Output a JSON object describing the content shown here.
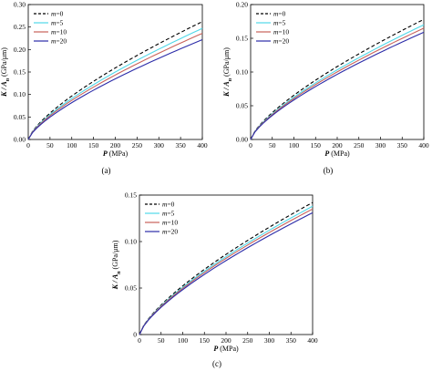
{
  "chart_data": [
    {
      "type": "line",
      "caption": "(a)",
      "xlabel_italic": "P",
      "xlabel_rest": " (MPa)",
      "ylabel_italic": "K / A",
      "ylabel_sub": "n",
      "ylabel_rest": " (GPa/μm)",
      "xlim": [
        0,
        400
      ],
      "ylim": [
        0,
        0.3
      ],
      "xticks": [
        "0",
        "50",
        "100",
        "150",
        "200",
        "250",
        "300",
        "350",
        "400"
      ],
      "yticks": [
        "0.00",
        "0.05",
        "0.10",
        "0.15",
        "0.20",
        "0.25",
        "0.30"
      ],
      "legend_position": "top-left",
      "grid": false,
      "x": [
        0,
        400
      ],
      "series": [
        {
          "prefix": "m",
          "suffix": "=0",
          "color": "#000000",
          "dash": true,
          "end_value": 0.262
        },
        {
          "prefix": "m",
          "suffix": "=5",
          "color": "#4fd8e8",
          "dash": false,
          "end_value": 0.247
        },
        {
          "prefix": "m",
          "suffix": "=10",
          "color": "#c8625a",
          "dash": false,
          "end_value": 0.236
        },
        {
          "prefix": "m",
          "suffix": "=20",
          "color": "#2b2ba8",
          "dash": false,
          "end_value": 0.222
        }
      ]
    },
    {
      "type": "line",
      "caption": "(b)",
      "xlabel_italic": "P",
      "xlabel_rest": " (MPa)",
      "ylabel_italic": "K / A",
      "ylabel_sub": "n",
      "ylabel_rest": " (GPa/μm)",
      "xlim": [
        0,
        400
      ],
      "ylim": [
        0,
        0.2
      ],
      "xticks": [
        "0",
        "50",
        "100",
        "150",
        "200",
        "250",
        "300",
        "350",
        "400"
      ],
      "yticks": [
        "0.00",
        "0.05",
        "0.10",
        "0.15",
        "0.20"
      ],
      "legend_position": "top-left",
      "grid": false,
      "x": [
        0,
        400
      ],
      "series": [
        {
          "prefix": "m",
          "suffix": "=0",
          "color": "#000000",
          "dash": true,
          "end_value": 0.178
        },
        {
          "prefix": "m",
          "suffix": "=5",
          "color": "#4fd8e8",
          "dash": false,
          "end_value": 0.17
        },
        {
          "prefix": "m",
          "suffix": "=10",
          "color": "#c8625a",
          "dash": false,
          "end_value": 0.165
        },
        {
          "prefix": "m",
          "suffix": "=20",
          "color": "#2b2ba8",
          "dash": false,
          "end_value": 0.159
        }
      ]
    },
    {
      "type": "line",
      "caption": "(c)",
      "xlabel_italic": "P",
      "xlabel_rest": " (MPa)",
      "ylabel_italic": "K / A",
      "ylabel_sub": "n",
      "ylabel_rest": " (GPa/μm)",
      "xlim": [
        0,
        400
      ],
      "ylim": [
        0,
        0.15
      ],
      "xticks": [
        "0",
        "50",
        "100",
        "150",
        "200",
        "250",
        "300",
        "350",
        "400"
      ],
      "yticks": [
        "0",
        "0.05",
        "0.10",
        "0.15"
      ],
      "legend_position": "top-left",
      "grid": false,
      "x": [
        0,
        400
      ],
      "series": [
        {
          "prefix": "m",
          "suffix": "=0",
          "color": "#000000",
          "dash": true,
          "end_value": 0.142
        },
        {
          "prefix": "m",
          "suffix": "=5",
          "color": "#4fd8e8",
          "dash": false,
          "end_value": 0.138
        },
        {
          "prefix": "m",
          "suffix": "=10",
          "color": "#c8625a",
          "dash": false,
          "end_value": 0.135
        },
        {
          "prefix": "m",
          "suffix": "=20",
          "color": "#2b2ba8",
          "dash": false,
          "end_value": 0.131
        }
      ]
    }
  ]
}
